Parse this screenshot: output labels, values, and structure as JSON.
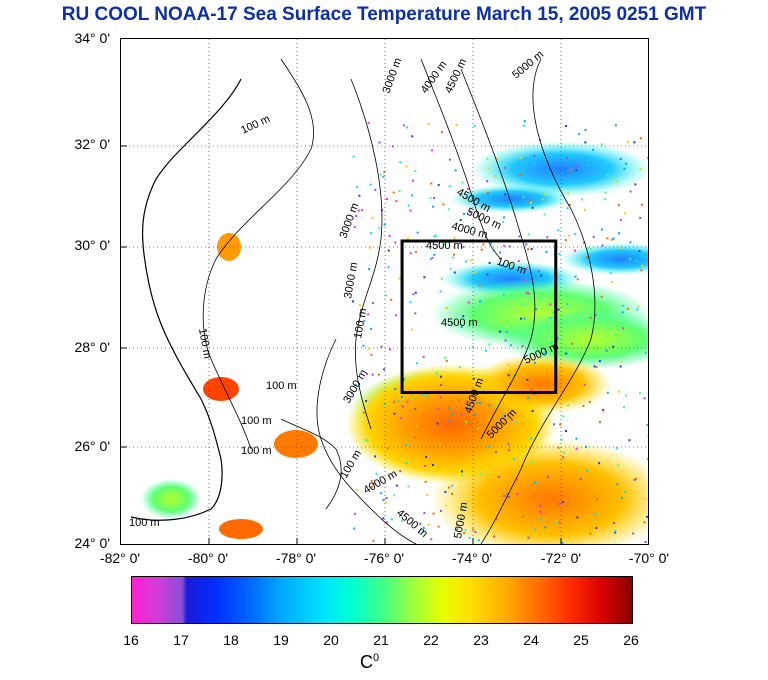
{
  "title": "RU COOL  NOAA-17 Sea Surface Temperature March 15, 2005 0251 GMT",
  "map": {
    "lat_labels": [
      "34° 0'",
      "32° 0'",
      "30° 0'",
      "28° 0'",
      "26° 0'",
      "24° 0'"
    ],
    "lon_labels": [
      "-82° 0'",
      "-80° 0'",
      "-78° 0'",
      "-76° 0'",
      "-74° 0'",
      "-72° 0'",
      "-70° 0'"
    ],
    "contour_labels": [
      "100 m",
      "3000 m",
      "4000 m",
      "4500 m",
      "5000 m",
      "4500 m",
      "5000 m",
      "100 m",
      "3000 m",
      "4000 m",
      "4500 m",
      "100 m",
      "3000 m",
      "100 m",
      "4500 m",
      "5000 m",
      "4500 m",
      "5000 m",
      "100 m",
      "100 m",
      "100 m",
      "3000 m",
      "100 m",
      "4000 m",
      "4500 m",
      "5000 m",
      "100 m"
    ],
    "study_box": {
      "lon_min": -75.6,
      "lon_max": -72.1,
      "lat_min": 27.0,
      "lat_max": 30.0
    }
  },
  "colorbar": {
    "ticks": [
      "16",
      "17",
      "18",
      "19",
      "20",
      "21",
      "22",
      "23",
      "24",
      "25",
      "26"
    ],
    "unit": "C",
    "unit_sup": "0"
  }
}
